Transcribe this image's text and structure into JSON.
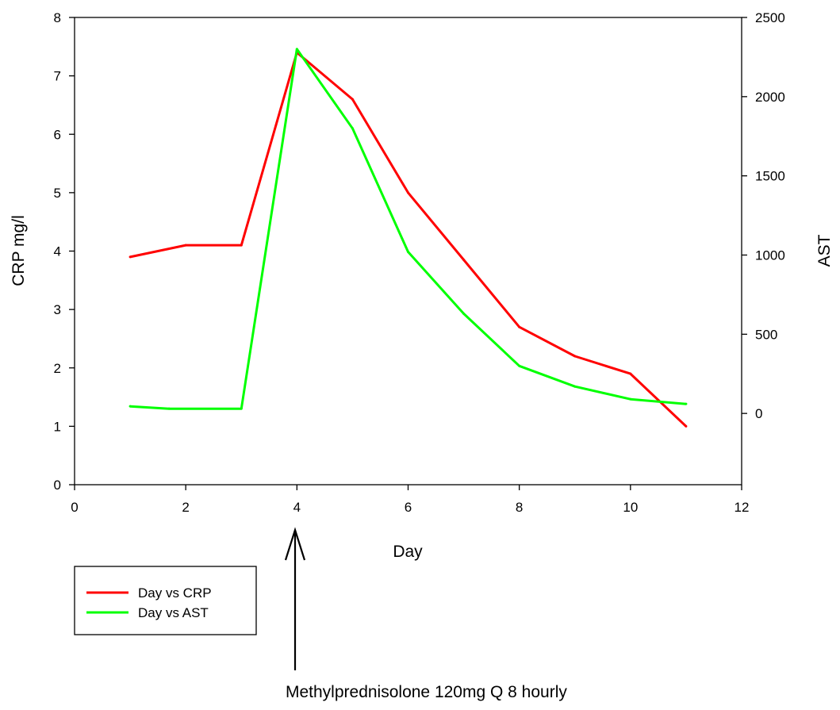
{
  "chart_data": {
    "type": "line",
    "xlabel": "Day",
    "ylabel": "CRP mg/l",
    "y2label": "AST",
    "xlim": [
      0,
      12
    ],
    "ylim": [
      0,
      8
    ],
    "y2lim": [
      -450,
      2500
    ],
    "x_ticks": [
      "0",
      "2",
      "4",
      "6",
      "8",
      "10",
      "12"
    ],
    "y_ticks": [
      "0",
      "1",
      "2",
      "3",
      "4",
      "5",
      "6",
      "7",
      "8"
    ],
    "y2_ticks": [
      "0",
      "500",
      "1000",
      "1500",
      "2000",
      "2500"
    ],
    "grid": false,
    "legend_position": "bottom-left, below plot",
    "series": [
      {
        "name": "Day vs CRP",
        "axis": "left",
        "color": "#ff0000",
        "x": [
          1,
          2,
          3,
          4,
          5,
          6,
          7,
          8,
          9,
          10,
          11
        ],
        "y": [
          3.9,
          4.1,
          4.1,
          7.4,
          6.6,
          5.0,
          3.85,
          2.7,
          2.2,
          1.9,
          1.0
        ]
      },
      {
        "name": "Day vs AST",
        "axis": "right",
        "color": "#00ff00",
        "x": [
          1,
          1.7,
          3,
          4,
          5,
          6,
          7,
          8,
          9,
          10,
          11
        ],
        "y": [
          45,
          30,
          30,
          2300,
          1800,
          1020,
          630,
          300,
          170,
          90,
          60
        ]
      }
    ],
    "annotation": {
      "text": "Methylprednisolone 120mg Q 8 hourly",
      "x": 4,
      "marker": "up-arrow"
    }
  }
}
